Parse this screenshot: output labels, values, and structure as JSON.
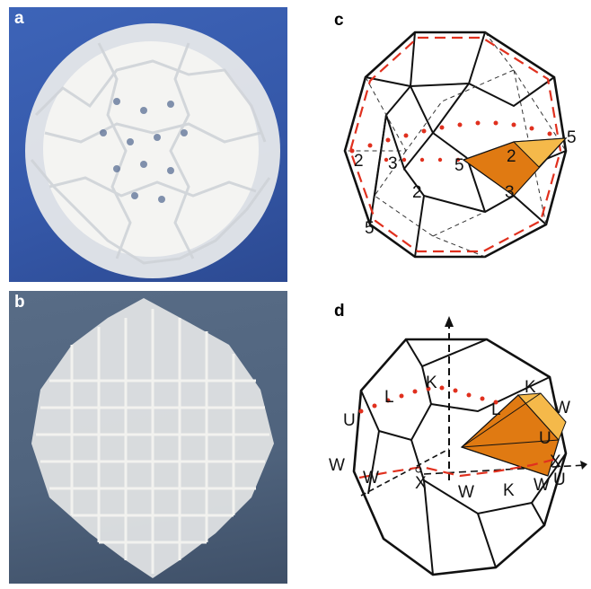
{
  "figure": {
    "panels": [
      {
        "letter": "a",
        "kind": "photo",
        "description_color": "#3558a9"
      },
      {
        "letter": "b",
        "kind": "photo",
        "description_color": "#4f637d"
      },
      {
        "letter": "c",
        "kind": "diagram",
        "labels": [
          "5",
          "2",
          "3",
          "5",
          "2",
          "3",
          "2",
          "5"
        ]
      },
      {
        "letter": "d",
        "kind": "diagram",
        "labels": [
          "K",
          "K",
          "L",
          "L",
          "U",
          "W",
          "U",
          "W",
          "W",
          "X",
          "X",
          "W",
          "K",
          "W",
          "U"
        ]
      }
    ]
  },
  "colors": {
    "red_dash": "#e0301e",
    "wedge_dark": "#e07a12",
    "wedge_light": "#f5b94a",
    "edge": "#111111"
  },
  "panel_c": {
    "label_5_right": "5",
    "label_2_left": "2",
    "label_3_left": "3",
    "label_5_mid": "5",
    "label_2_wedge": "2",
    "label_3_bottom": "3",
    "label_2_lower": "2",
    "label_5_bottom": "5"
  },
  "panel_d": {
    "label_K_top": "K",
    "label_K_right": "K",
    "label_L_left": "L",
    "label_L_mid": "L",
    "label_U_left": "U",
    "label_W_right": "W",
    "label_U_right": "U",
    "label_W_left": "W",
    "label_W_left2": "W",
    "label_X_mid": "X",
    "label_X_right": "X",
    "label_W_bottom": "W",
    "label_K_bottom": "K",
    "label_W_bottom2": "W",
    "label_U_bottom": "U"
  }
}
